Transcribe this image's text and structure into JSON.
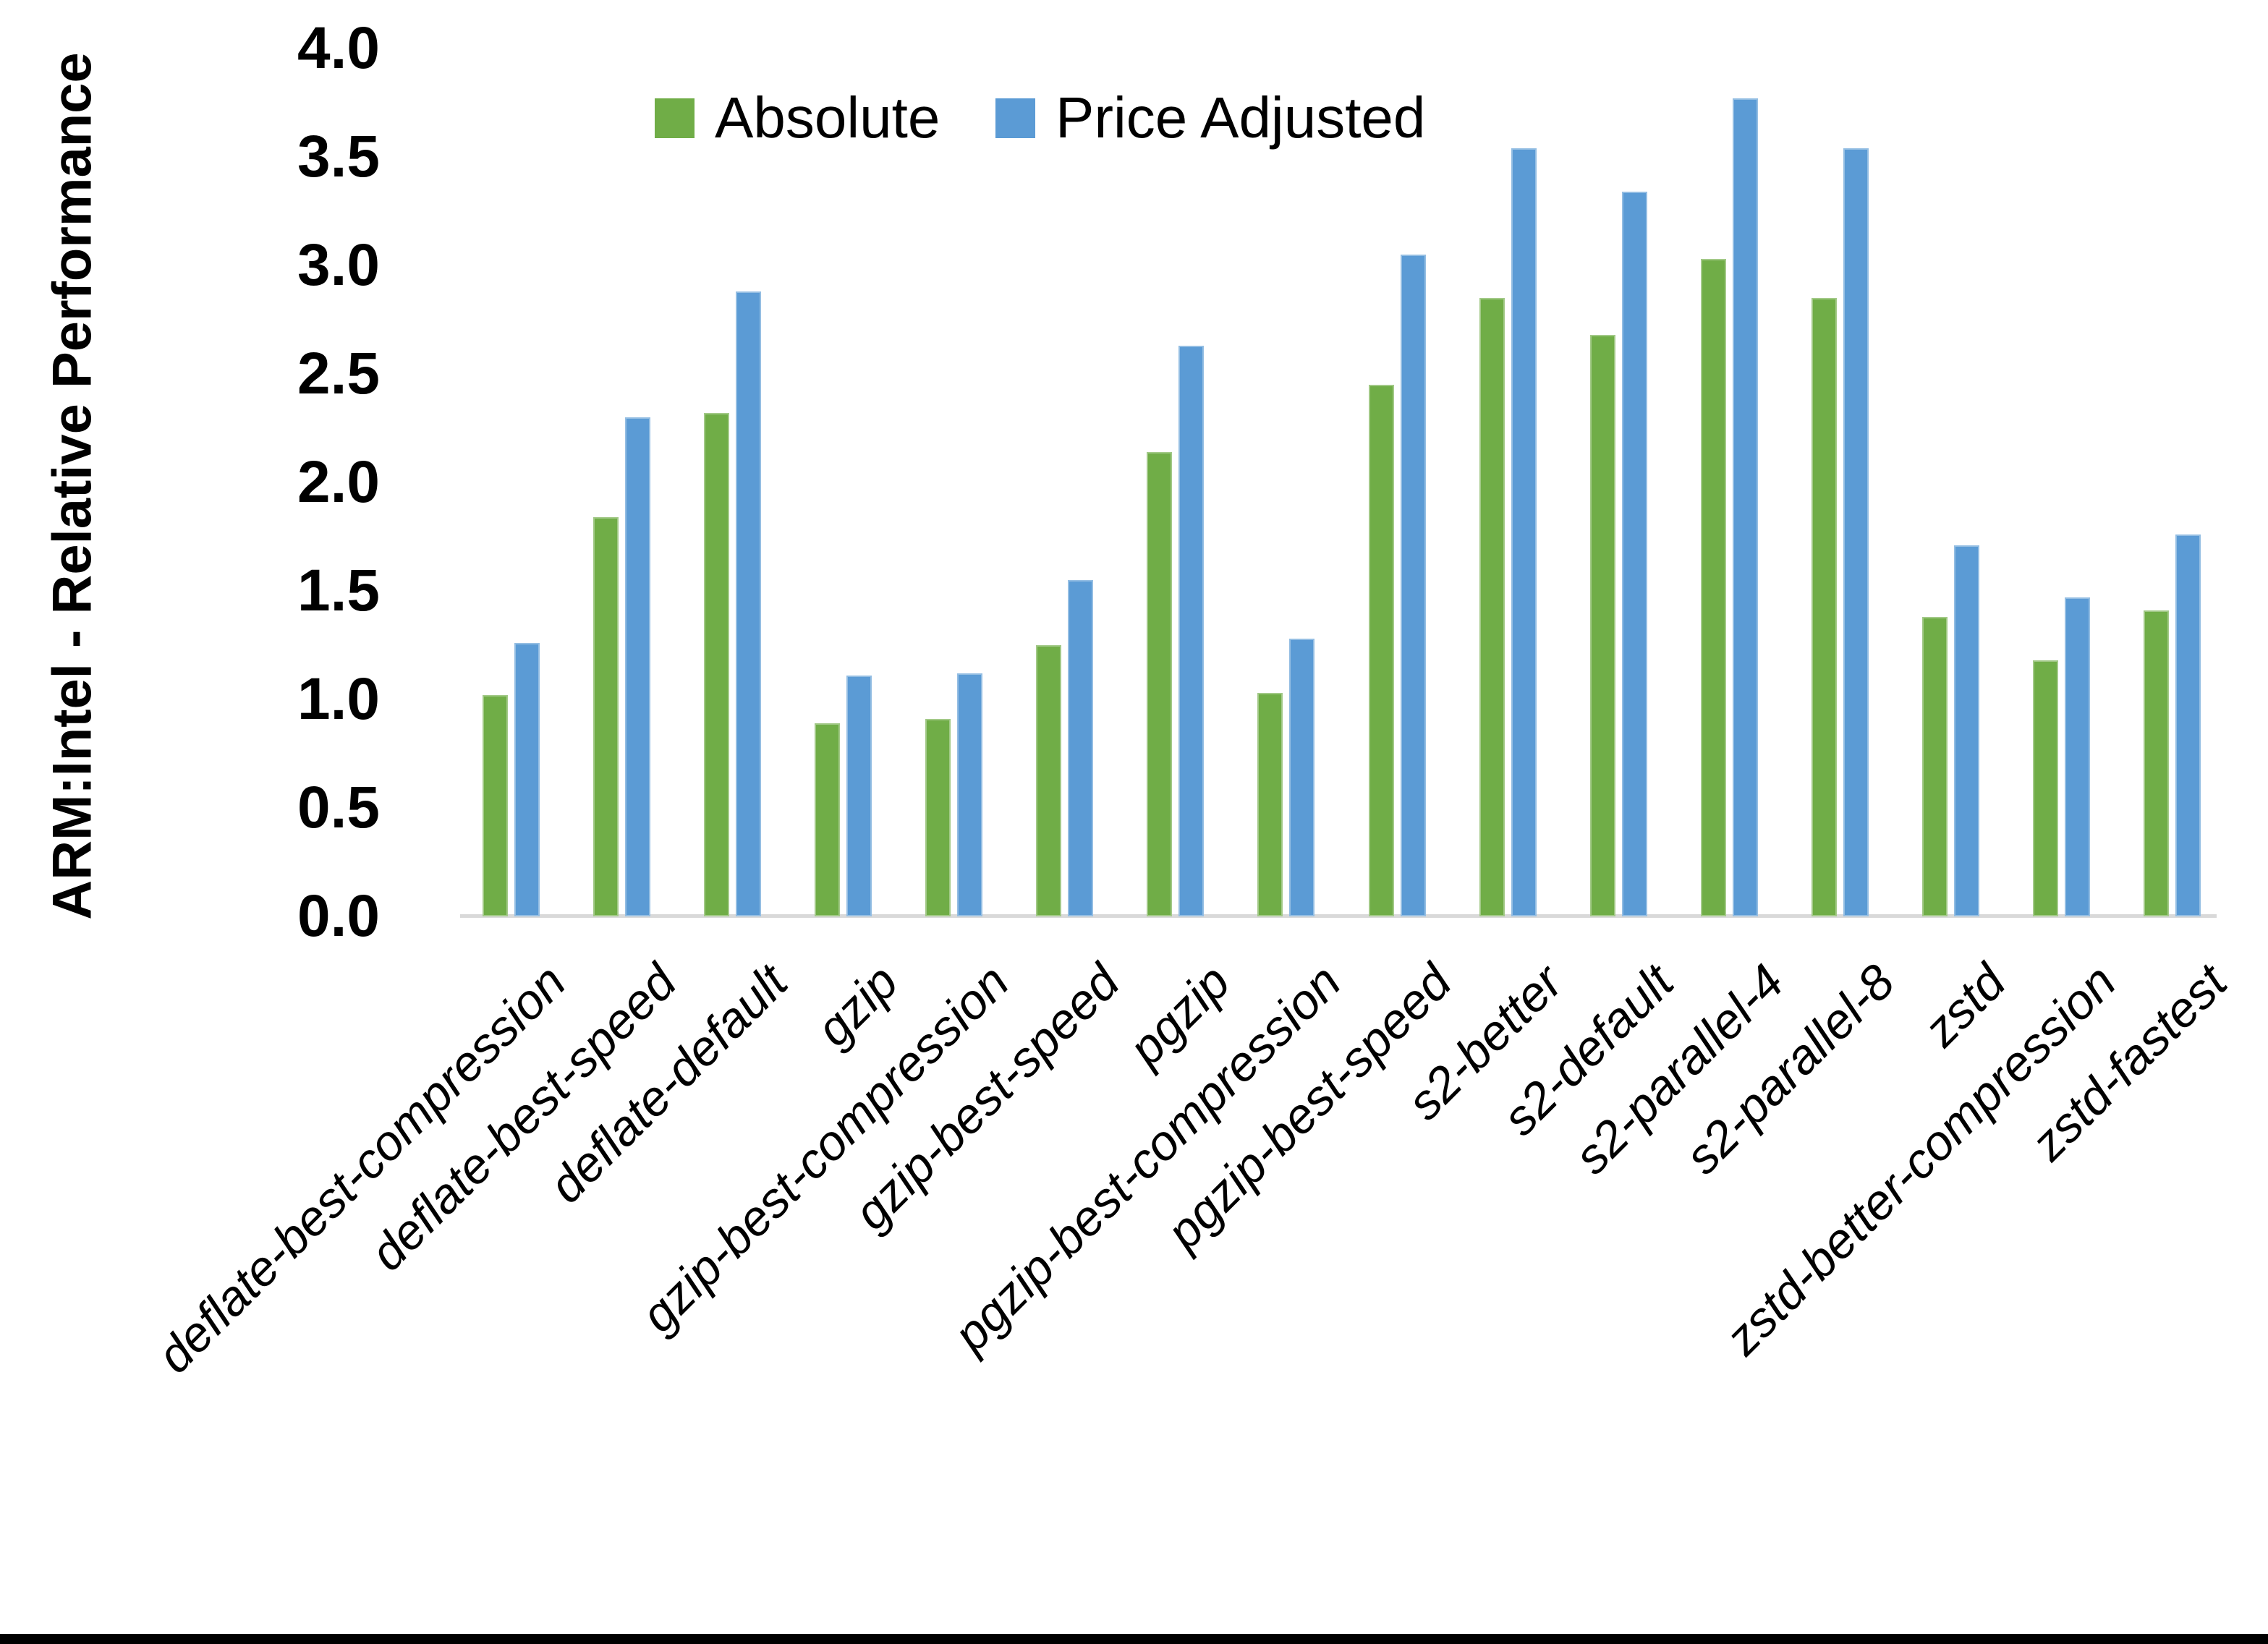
{
  "chart_data": {
    "type": "bar",
    "title": "",
    "xlabel": "",
    "ylabel": "ARM:Intel - Relative Performance",
    "ylim": [
      0.0,
      4.0
    ],
    "ytick_step": 0.5,
    "ytick_labels": [
      "0.0",
      "0.5",
      "1.0",
      "1.5",
      "2.0",
      "2.5",
      "3.0",
      "3.5",
      "4.0"
    ],
    "grid": false,
    "legend_position": "top-center",
    "categories": [
      "deflate-best-compression",
      "deflate-best-speed",
      "deflate-default",
      "gzip",
      "gzip-best-compression",
      "gzip-best-speed",
      "pgzip",
      "pgzip-best-compression",
      "pgzip-best-speed",
      "s2-better",
      "s2-default",
      "s2-parallel-4",
      "s2-parallel-8",
      "zstd",
      "zstd-better-compression",
      "zstd-fastest"
    ],
    "series": [
      {
        "name": "Absolute",
        "color": "#70AD47",
        "values": [
          1.02,
          1.84,
          2.32,
          0.89,
          0.91,
          1.25,
          2.14,
          1.03,
          2.45,
          2.85,
          2.68,
          3.03,
          2.85,
          1.38,
          1.18,
          1.41
        ]
      },
      {
        "name": "Price Adjusted",
        "color": "#5B9BD5",
        "values": [
          1.26,
          2.3,
          2.88,
          1.11,
          1.12,
          1.55,
          2.63,
          1.28,
          3.05,
          3.54,
          3.34,
          3.77,
          3.54,
          1.71,
          1.47,
          1.76
        ]
      }
    ]
  },
  "colors": {
    "absolute_green": "#70AD47",
    "price_adjusted_blue": "#5B9BD5",
    "axis_line_gray": "#d9d9d9",
    "text_black": "#000000",
    "bottom_border_black": "#000000"
  }
}
